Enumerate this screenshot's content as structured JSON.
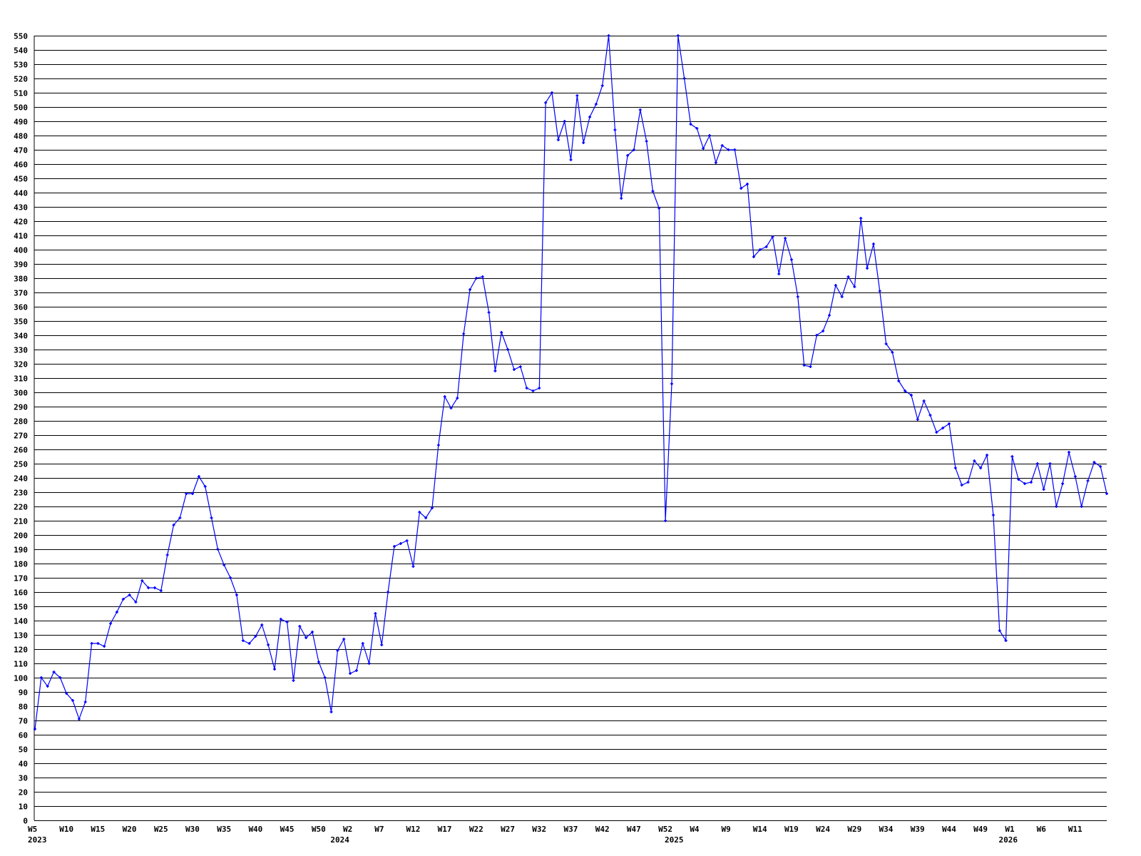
{
  "chart_data": {
    "type": "line",
    "title": "",
    "xlabel": "",
    "ylabel": "",
    "ylim": [
      0,
      550
    ],
    "y_tick_step": 10,
    "grid": "horizontal",
    "line_color": "#0000ff",
    "grid_color": "#000000",
    "marker": "plus",
    "x_ticks": [
      {
        "index": 0,
        "label": "W5"
      },
      {
        "index": 5,
        "label": "W10"
      },
      {
        "index": 10,
        "label": "W15"
      },
      {
        "index": 15,
        "label": "W20"
      },
      {
        "index": 20,
        "label": "W25"
      },
      {
        "index": 25,
        "label": "W30"
      },
      {
        "index": 30,
        "label": "W35"
      },
      {
        "index": 35,
        "label": "W40"
      },
      {
        "index": 40,
        "label": "W45"
      },
      {
        "index": 45,
        "label": "W50"
      },
      {
        "index": 50,
        "label": "W2"
      },
      {
        "index": 55,
        "label": "W7"
      },
      {
        "index": 60,
        "label": "W12"
      },
      {
        "index": 65,
        "label": "W17"
      },
      {
        "index": 70,
        "label": "W22"
      },
      {
        "index": 75,
        "label": "W27"
      },
      {
        "index": 80,
        "label": "W32"
      },
      {
        "index": 85,
        "label": "W37"
      },
      {
        "index": 90,
        "label": "W42"
      },
      {
        "index": 95,
        "label": "W47"
      },
      {
        "index": 100,
        "label": "W52"
      },
      {
        "index": 105,
        "label": "W4"
      },
      {
        "index": 110,
        "label": "W9"
      },
      {
        "index": 115,
        "label": "W14"
      },
      {
        "index": 120,
        "label": "W19"
      },
      {
        "index": 125,
        "label": "W24"
      },
      {
        "index": 130,
        "label": "W29"
      },
      {
        "index": 135,
        "label": "W34"
      },
      {
        "index": 140,
        "label": "W39"
      },
      {
        "index": 145,
        "label": "W44"
      },
      {
        "index": 150,
        "label": "W49"
      },
      {
        "index": 155,
        "label": "W1"
      },
      {
        "index": 160,
        "label": "W6"
      },
      {
        "index": 165,
        "label": "W11"
      }
    ],
    "year_labels": [
      {
        "index": 0,
        "label": "2023"
      },
      {
        "index": 48,
        "label": "2024"
      },
      {
        "index": 101,
        "label": "2025"
      },
      {
        "index": 154,
        "label": "2026"
      }
    ],
    "values": [
      64,
      100,
      94,
      104,
      100,
      89,
      84,
      71,
      83,
      124,
      124,
      122,
      138,
      146,
      155,
      158,
      153,
      168,
      163,
      163,
      161,
      186,
      207,
      212,
      229,
      229,
      241,
      234,
      212,
      190,
      179,
      170,
      158,
      126,
      124,
      129,
      137,
      123,
      106,
      141,
      139,
      98,
      136,
      128,
      132,
      111,
      100,
      76,
      119,
      127,
      103,
      105,
      124,
      110,
      145,
      123,
      160,
      192,
      194,
      196,
      178,
      216,
      212,
      219,
      263,
      297,
      289,
      296,
      341,
      372,
      380,
      381,
      356,
      315,
      342,
      330,
      316,
      318,
      303,
      301,
      303,
      503,
      510,
      477,
      490,
      463,
      508,
      475,
      493,
      502,
      515,
      550,
      484,
      436,
      466,
      470,
      498,
      476,
      441,
      429,
      210,
      306,
      550,
      520,
      488,
      485,
      471,
      480,
      461,
      473,
      470,
      470,
      443,
      446,
      395,
      400,
      402,
      409,
      383,
      408,
      393,
      367,
      319,
      318,
      340,
      343,
      354,
      375,
      367,
      381,
      374,
      422,
      387,
      404,
      371,
      334,
      328,
      308,
      301,
      298,
      281,
      294,
      284,
      272,
      275,
      278,
      247,
      235,
      237,
      252,
      247,
      256,
      214,
      133,
      126,
      255,
      239,
      236,
      237,
      250,
      232,
      250,
      220,
      236,
      258,
      241,
      220,
      238,
      251,
      248,
      229
    ]
  }
}
